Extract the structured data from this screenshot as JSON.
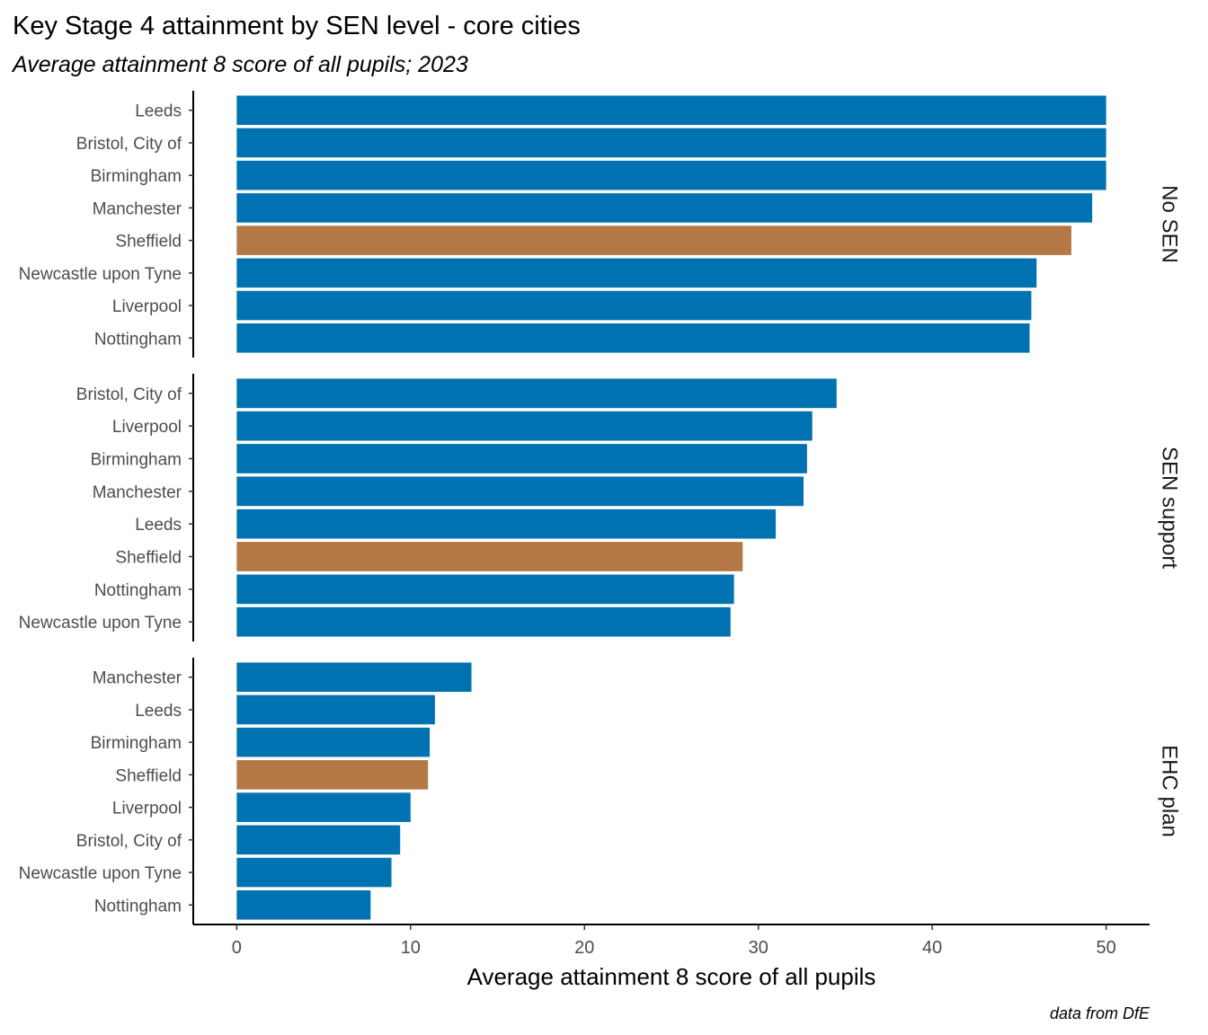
{
  "chart_data": {
    "type": "bar",
    "orientation": "horizontal",
    "title": "Key Stage 4 attainment by SEN level - core cities",
    "subtitle": "Average attainment 8 score of all pupils; 2023",
    "xlabel": "Average attainment 8 score of all pupils",
    "caption": "data from DfE",
    "xlim": [
      -2.5,
      52.5
    ],
    "xticks": [
      "0",
      "10",
      "20",
      "30",
      "40",
      "50"
    ],
    "grid": false,
    "legend": "none",
    "colors": {
      "default": "#0072B2",
      "highlight": "#B37845",
      "highlight_category": "Sheffield"
    },
    "facets": [
      {
        "label": "No SEN",
        "categories": [
          "Leeds",
          "Bristol, City of",
          "Birmingham",
          "Manchester",
          "Sheffield",
          "Newcastle upon Tyne",
          "Liverpool",
          "Nottingham"
        ],
        "values": [
          50.0,
          50.0,
          50.0,
          49.2,
          48.0,
          46.0,
          45.7,
          45.6
        ]
      },
      {
        "label": "SEN support",
        "categories": [
          "Bristol, City of",
          "Liverpool",
          "Birmingham",
          "Manchester",
          "Leeds",
          "Sheffield",
          "Nottingham",
          "Newcastle upon Tyne"
        ],
        "values": [
          34.5,
          33.1,
          32.8,
          32.6,
          31.0,
          29.1,
          28.6,
          28.4
        ]
      },
      {
        "label": "EHC plan",
        "categories": [
          "Manchester",
          "Leeds",
          "Birmingham",
          "Sheffield",
          "Liverpool",
          "Bristol, City of",
          "Newcastle upon Tyne",
          "Nottingham"
        ],
        "values": [
          13.5,
          11.4,
          11.1,
          11.0,
          10.0,
          9.4,
          8.9,
          7.7
        ]
      }
    ]
  }
}
